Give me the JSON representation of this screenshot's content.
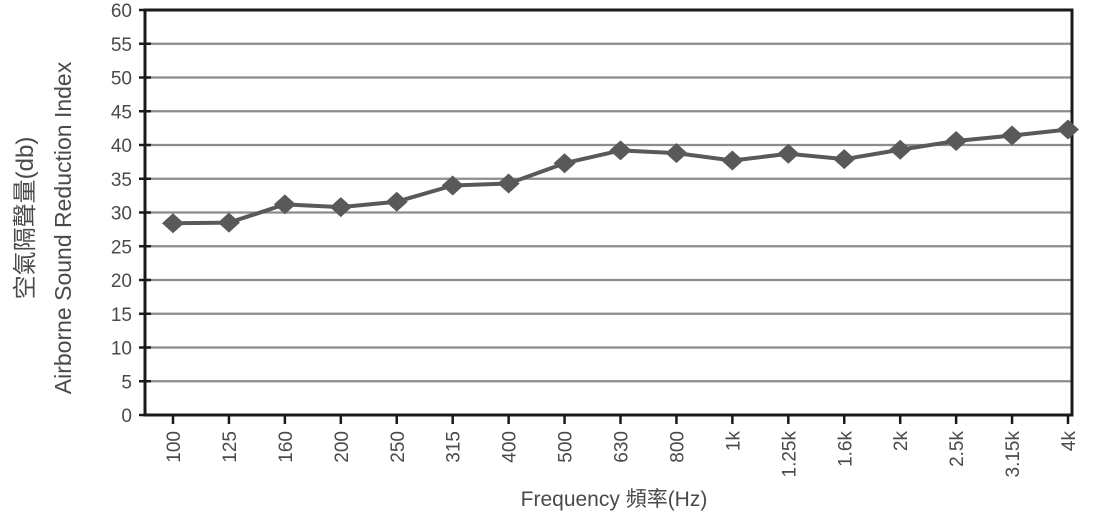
{
  "chart_data": {
    "type": "line",
    "title": "",
    "x_axis": {
      "title": "Frequency 頻率(Hz)",
      "categories": [
        "100",
        "125",
        "160",
        "200",
        "250",
        "315",
        "400",
        "500",
        "630",
        "800",
        "1k",
        "1.25k",
        "1.6k",
        "2k",
        "2.5k",
        "3.15k",
        "4k"
      ],
      "labels_rotated_degrees": 90
    },
    "y_axis": {
      "title_cjk": "空氣隔聲量(db)",
      "title_en": "Airborne Sound Reduction Index",
      "min": 0,
      "max": 60,
      "tick_step": 5
    },
    "series": [
      {
        "marker": "diamond",
        "values": [
          28.4,
          28.5,
          31.2,
          30.8,
          31.6,
          34.0,
          34.3,
          37.3,
          39.2,
          38.8,
          37.7,
          38.7,
          37.9,
          39.3,
          40.6,
          41.4,
          42.3
        ]
      }
    ],
    "grid": "horizontal",
    "legend": false
  },
  "colors": {
    "series": "#595959",
    "gridline": "#8c8c8c",
    "axis": "#1a1a1a",
    "text": "#4a4a4a",
    "background": "#ffffff"
  }
}
